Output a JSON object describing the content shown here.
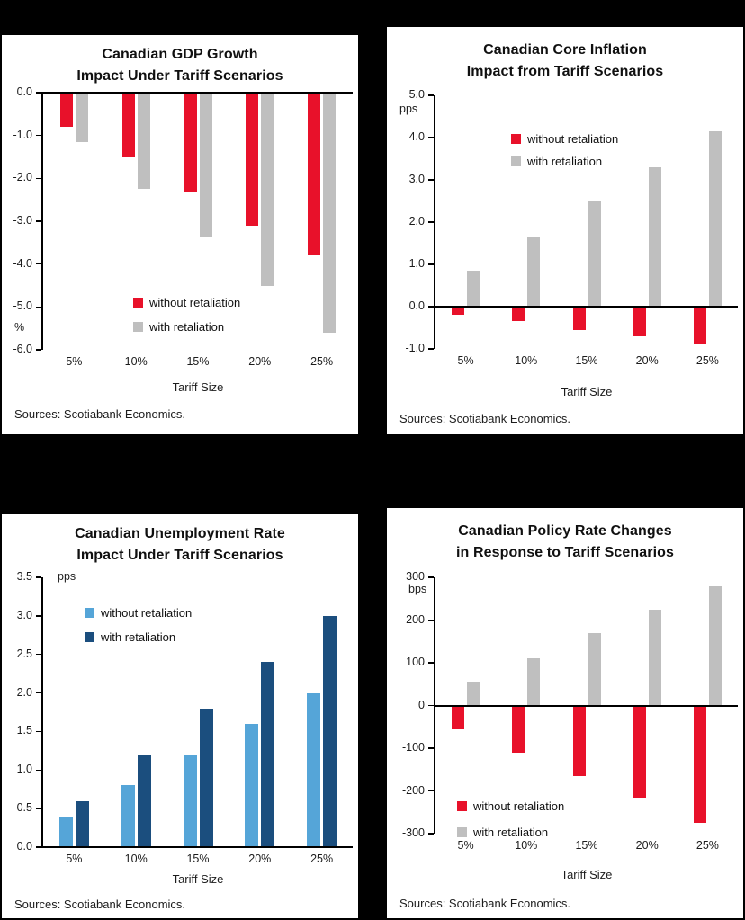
{
  "page": {
    "background": "#000000"
  },
  "chart_data": [
    {
      "type": "bar",
      "title": "Canadian GDP Growth Impact Under Tariff Scenarios",
      "title_lines": [
        "Canadian GDP Growth",
        "Impact Under Tariff Scenarios"
      ],
      "unit": "%",
      "categories": [
        "5%",
        "10%",
        "15%",
        "20%",
        "25%"
      ],
      "series": [
        {
          "name": "without retaliation",
          "color": "#e8112a",
          "values": [
            -0.8,
            -1.5,
            -2.3,
            -3.1,
            -3.8
          ]
        },
        {
          "name": "with retaliation",
          "color": "#bfbfbf",
          "values": [
            -1.15,
            -2.25,
            -3.35,
            -4.5,
            -5.6
          ]
        }
      ],
      "ylim": [
        -6,
        0
      ],
      "ytick_values": [
        0,
        -1,
        -2,
        -3,
        -4,
        -5,
        -6
      ],
      "ytick_labels": [
        "0.0",
        "-1.0",
        "-2.0",
        "-3.0",
        "-4.0",
        "-5.0",
        "-6.0"
      ],
      "xlabel": "Tariff Size",
      "source": "Sources: Scotiabank Economics.",
      "grid": false,
      "legend_position": "middle-center-inside"
    },
    {
      "type": "bar",
      "title": "Canadian Core Inflation Impact from Tariff Scenarios",
      "title_lines": [
        "Canadian Core Inflation",
        "Impact from Tariff Scenarios"
      ],
      "unit": "pps",
      "categories": [
        "5%",
        "10%",
        "15%",
        "20%",
        "25%"
      ],
      "series": [
        {
          "name": "without retaliation",
          "color": "#e8112a",
          "values": [
            -0.2,
            -0.35,
            -0.55,
            -0.7,
            -0.9
          ]
        },
        {
          "name": "with retaliation",
          "color": "#bfbfbf",
          "values": [
            0.85,
            1.65,
            2.5,
            3.3,
            4.15
          ]
        }
      ],
      "ylim": [
        -1,
        5
      ],
      "ytick_values": [
        5,
        4,
        3,
        2,
        1,
        0,
        -1
      ],
      "ytick_labels": [
        "5.0",
        "4.0",
        "3.0",
        "2.0",
        "1.0",
        "0.0",
        "-1.0"
      ],
      "xlabel": "Tariff Size",
      "source": "Sources: Scotiabank Economics.",
      "grid": false,
      "legend_position": "upper-middle-inside"
    },
    {
      "type": "bar",
      "title": "Canadian Unemployment Rate Impact Under Tariff Scenarios",
      "title_lines": [
        "Canadian Unemployment Rate",
        "Impact Under Tariff Scenarios"
      ],
      "unit": "pps",
      "categories": [
        "5%",
        "10%",
        "15%",
        "20%",
        "25%"
      ],
      "series": [
        {
          "name": "without retaliation",
          "color": "#55a5d8",
          "values": [
            0.4,
            0.8,
            1.2,
            1.6,
            2.0
          ]
        },
        {
          "name": "with retaliation",
          "color": "#1b4e7e",
          "values": [
            0.6,
            1.2,
            1.8,
            2.4,
            3.0
          ]
        }
      ],
      "ylim": [
        0,
        3.5
      ],
      "ytick_values": [
        3.5,
        3,
        2.5,
        2,
        1.5,
        1,
        0.5,
        0
      ],
      "ytick_labels": [
        "3.5",
        "3.0",
        "2.5",
        "2.0",
        "1.5",
        "1.0",
        "0.5",
        "0.0"
      ],
      "xlabel": "Tariff Size",
      "source": "Sources: Scotiabank Economics.",
      "grid": false,
      "legend_position": "upper-left-inside"
    },
    {
      "type": "bar",
      "title": "Canadian Policy Rate Changes in Response to Tariff Scenarios",
      "title_lines": [
        "Canadian Policy Rate Changes",
        "in Response to Tariff Scenarios"
      ],
      "unit": "bps",
      "categories": [
        "5%",
        "10%",
        "15%",
        "20%",
        "25%"
      ],
      "series": [
        {
          "name": "without retaliation",
          "color": "#e8112a",
          "values": [
            -55,
            -110,
            -165,
            -215,
            -275
          ]
        },
        {
          "name": "with retaliation",
          "color": "#bfbfbf",
          "values": [
            55,
            110,
            170,
            225,
            280
          ]
        }
      ],
      "ylim": [
        -300,
        300
      ],
      "ytick_values": [
        300,
        200,
        100,
        0,
        -100,
        -200,
        -300
      ],
      "ytick_labels": [
        "300",
        "200",
        "100",
        "0",
        "-100",
        "-200",
        "-300"
      ],
      "xlabel": "Tariff Size",
      "source": "Sources: Scotiabank Economics.",
      "grid": false,
      "legend_position": "lower-left-inside"
    }
  ]
}
